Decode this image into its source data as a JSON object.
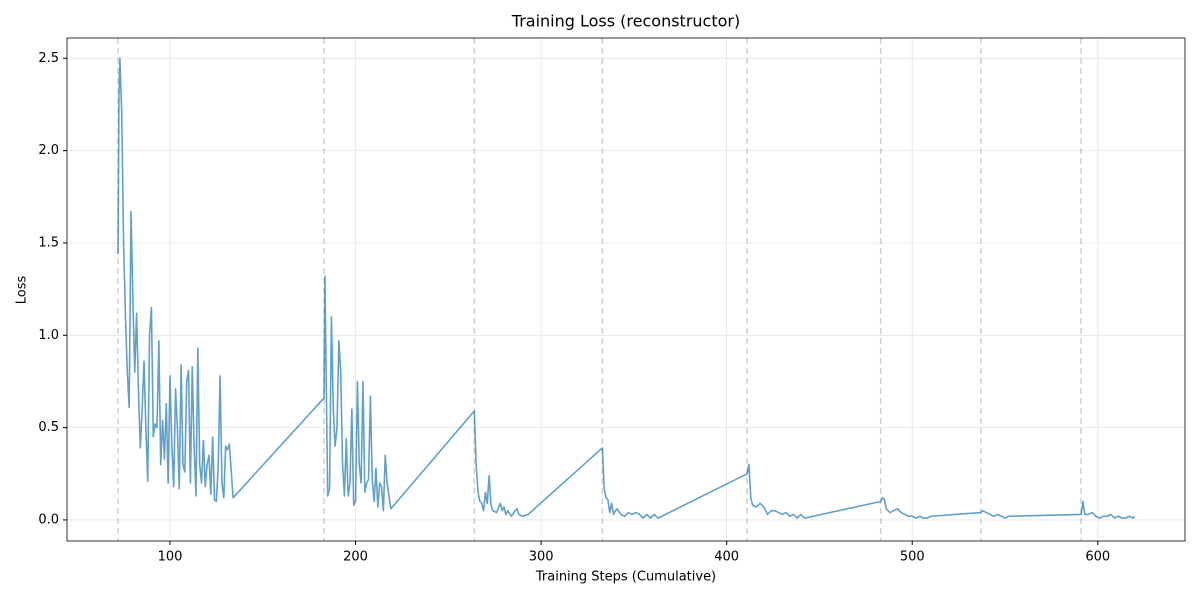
{
  "chart_data": {
    "type": "line",
    "title": "Training Loss (reconstructor)",
    "xlabel": "Training Steps (Cumulative)",
    "ylabel": "Loss",
    "x": [
      72,
      72.5,
      73,
      74,
      75,
      76,
      77,
      78,
      79,
      80,
      81,
      82,
      83,
      84,
      85,
      86,
      87,
      88,
      89,
      90,
      91,
      92,
      93,
      94,
      95,
      96,
      97,
      98,
      99,
      100,
      101,
      102,
      103,
      104,
      105,
      106,
      107,
      108,
      109,
      110,
      111,
      112,
      113,
      114,
      115,
      116,
      117,
      118,
      119,
      120,
      121,
      122,
      123,
      124,
      125,
      126,
      127,
      128,
      129,
      130,
      131,
      132,
      134,
      183,
      183.5,
      184,
      185,
      186,
      187,
      188,
      189,
      190,
      191,
      192,
      193,
      194,
      195,
      196,
      197,
      198,
      199,
      200,
      201,
      202,
      203,
      204,
      205,
      206,
      207,
      208,
      209,
      210,
      211,
      212,
      213,
      214,
      215,
      216,
      217,
      219,
      264,
      265,
      266,
      267,
      268,
      269,
      270,
      271,
      272,
      273,
      274,
      276,
      278,
      279,
      280,
      281,
      282,
      284,
      286,
      287,
      288,
      290,
      293,
      333,
      334,
      335,
      336,
      337,
      338,
      339,
      340,
      341,
      343,
      345,
      347,
      349,
      351,
      353,
      355,
      357,
      359,
      361,
      363,
      411,
      412,
      413,
      414,
      416,
      418,
      420,
      422,
      424,
      426,
      428,
      430,
      432,
      434,
      436,
      438,
      440,
      442,
      483,
      484,
      485,
      486,
      488,
      490,
      492,
      494,
      496,
      498,
      500,
      502,
      504,
      506,
      508,
      510,
      537,
      538,
      540,
      542,
      544,
      546,
      548,
      550,
      552,
      591,
      592,
      593,
      595,
      597,
      599,
      601,
      603,
      605,
      607,
      609,
      611,
      613,
      615,
      617,
      619,
      620
    ],
    "series": [
      {
        "color": "#1f77b4",
        "values": [
          1.44,
          2.3,
          2.5,
          2.2,
          1.5,
          1.1,
          0.8,
          0.61,
          1.67,
          1.2,
          0.8,
          1.12,
          0.7,
          0.39,
          0.6,
          0.86,
          0.5,
          0.21,
          1.0,
          1.15,
          0.45,
          0.52,
          0.5,
          0.97,
          0.3,
          0.54,
          0.33,
          0.63,
          0.2,
          0.78,
          0.4,
          0.18,
          0.71,
          0.5,
          0.17,
          0.84,
          0.3,
          0.26,
          0.75,
          0.81,
          0.2,
          0.83,
          0.4,
          0.13,
          0.93,
          0.3,
          0.2,
          0.43,
          0.18,
          0.3,
          0.35,
          0.14,
          0.45,
          0.11,
          0.1,
          0.3,
          0.78,
          0.2,
          0.12,
          0.4,
          0.38,
          0.41,
          0.12,
          0.66,
          1.32,
          0.9,
          0.13,
          0.17,
          1.1,
          0.6,
          0.4,
          0.5,
          0.97,
          0.8,
          0.3,
          0.13,
          0.44,
          0.13,
          0.2,
          0.6,
          0.08,
          0.1,
          0.75,
          0.3,
          0.2,
          0.75,
          0.15,
          0.2,
          0.22,
          0.67,
          0.22,
          0.1,
          0.28,
          0.07,
          0.2,
          0.18,
          0.05,
          0.35,
          0.2,
          0.06,
          0.59,
          0.3,
          0.15,
          0.1,
          0.09,
          0.05,
          0.15,
          0.09,
          0.24,
          0.08,
          0.05,
          0.04,
          0.09,
          0.05,
          0.07,
          0.03,
          0.05,
          0.02,
          0.05,
          0.06,
          0.03,
          0.02,
          0.03,
          0.39,
          0.17,
          0.12,
          0.11,
          0.04,
          0.09,
          0.03,
          0.05,
          0.06,
          0.03,
          0.02,
          0.04,
          0.03,
          0.04,
          0.03,
          0.01,
          0.03,
          0.01,
          0.03,
          0.01,
          0.25,
          0.3,
          0.12,
          0.08,
          0.07,
          0.09,
          0.07,
          0.03,
          0.05,
          0.05,
          0.04,
          0.03,
          0.04,
          0.02,
          0.03,
          0.01,
          0.03,
          0.01,
          0.1,
          0.12,
          0.11,
          0.06,
          0.04,
          0.05,
          0.06,
          0.04,
          0.03,
          0.02,
          0.02,
          0.01,
          0.02,
          0.01,
          0.01,
          0.02,
          0.04,
          0.05,
          0.04,
          0.03,
          0.02,
          0.03,
          0.02,
          0.01,
          0.02,
          0.03,
          0.1,
          0.03,
          0.03,
          0.04,
          0.02,
          0.01,
          0.02,
          0.02,
          0.03,
          0.01,
          0.02,
          0.01,
          0.01,
          0.02,
          0.01,
          0.02
        ]
      }
    ],
    "vlines": [
      72,
      183,
      264,
      333,
      411,
      483,
      537,
      591
    ],
    "xlim": [
      44.5,
      647
    ],
    "ylim": [
      -0.114,
      2.61
    ],
    "xticks": [
      100,
      200,
      300,
      400,
      500,
      600
    ],
    "yticks": [
      {
        "value": 0,
        "label": "0.0"
      },
      0.5,
      {
        "value": 1,
        "label": "1.0"
      },
      1.5,
      {
        "value": 2,
        "label": "2.0"
      },
      2.5
    ],
    "grid": true
  }
}
